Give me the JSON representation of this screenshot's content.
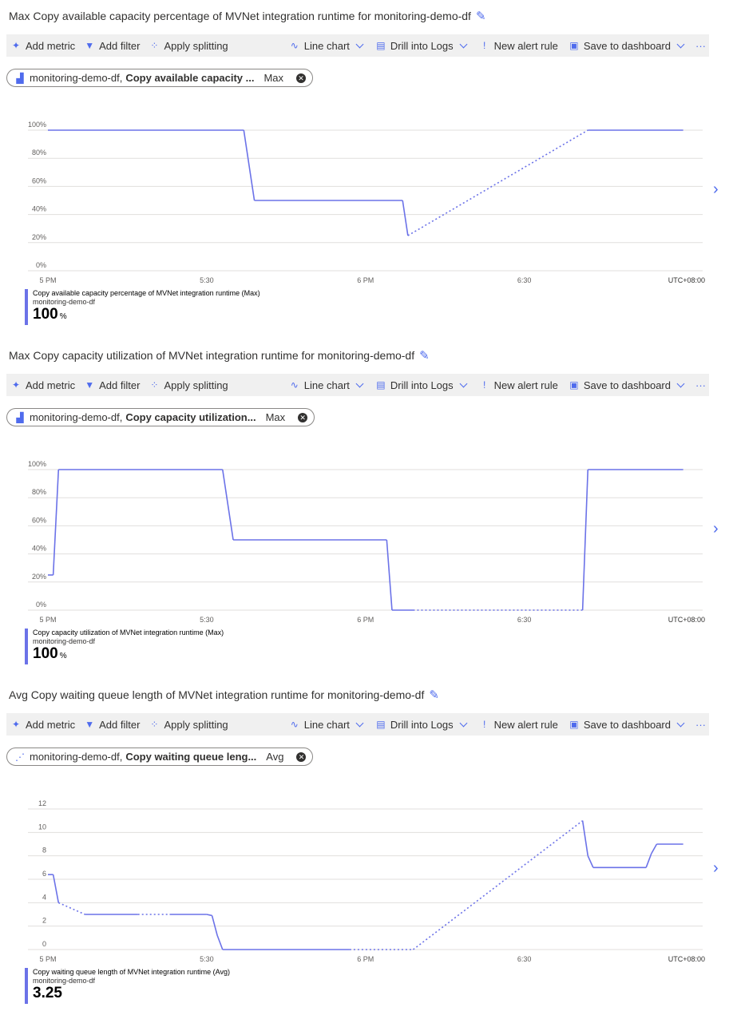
{
  "toolbar": {
    "add_metric": "Add metric",
    "add_filter": "Add filter",
    "apply_splitting": "Apply splitting",
    "line_chart": "Line chart",
    "drill_logs": "Drill into Logs",
    "new_alert": "New alert rule",
    "save_dashboard": "Save to dashboard",
    "more": "···"
  },
  "colors": {
    "accent": "#4f6bed",
    "series": "#6b72e8",
    "toolbar_bg": "#f0f0f0"
  },
  "x_ticks": [
    "5 PM",
    "5:30",
    "6 PM",
    "6:30"
  ],
  "timezone": "UTC+08:00",
  "panels": [
    {
      "title": "Max Copy available capacity percentage of MVNet integration runtime for monitoring-demo-df",
      "chip": {
        "resource": "monitoring-demo-df,",
        "metric": "Copy available capacity ...",
        "agg": "Max",
        "icon": "factory-icon"
      },
      "legend": {
        "name": "Copy available capacity percentage of MVNet integration runtime (Max)",
        "resource": "monitoring-demo-df",
        "value": "100",
        "unit": "%"
      },
      "chart_data": {
        "type": "line",
        "y_ticks": [
          "0%",
          "20%",
          "40%",
          "60%",
          "80%",
          "100%"
        ],
        "ylim": [
          0,
          100
        ],
        "xlim": [
          "17:00",
          "19:07"
        ],
        "points": [
          [
            "17:00",
            100,
            false
          ],
          [
            "17:37",
            100,
            false
          ],
          [
            "17:39",
            50,
            false
          ],
          [
            "18:07",
            50,
            false
          ],
          [
            "18:08",
            25,
            true
          ],
          [
            "18:42",
            100,
            false
          ],
          [
            "19:00",
            100,
            false
          ]
        ]
      }
    },
    {
      "title": "Max Copy capacity utilization of MVNet integration runtime for monitoring-demo-df",
      "chip": {
        "resource": "monitoring-demo-df,",
        "metric": "Copy capacity utilization...",
        "agg": "Max",
        "icon": "factory-icon"
      },
      "legend": {
        "name": "Copy capacity utilization of MVNet integration runtime (Max)",
        "resource": "monitoring-demo-df",
        "value": "100",
        "unit": "%"
      },
      "chart_data": {
        "type": "line",
        "y_ticks": [
          "0%",
          "20%",
          "40%",
          "60%",
          "80%",
          "100%"
        ],
        "ylim": [
          0,
          100
        ],
        "xlim": [
          "17:00",
          "19:07"
        ],
        "points": [
          [
            "17:00",
            25,
            false
          ],
          [
            "17:01",
            25,
            false
          ],
          [
            "17:02",
            100,
            false
          ],
          [
            "17:33",
            100,
            false
          ],
          [
            "17:35",
            50,
            false
          ],
          [
            "18:04",
            50,
            false
          ],
          [
            "18:05",
            0,
            false
          ],
          [
            "18:09",
            0,
            true
          ],
          [
            "18:41",
            0,
            false
          ],
          [
            "18:42",
            100,
            false
          ],
          [
            "19:00",
            100,
            false
          ]
        ]
      }
    },
    {
      "title": "Avg Copy waiting queue length of MVNet integration runtime for monitoring-demo-df",
      "chip": {
        "resource": "monitoring-demo-df,",
        "metric": "Copy waiting queue leng...",
        "agg": "Avg",
        "icon": "line-metric-icon"
      },
      "legend": {
        "name": "Copy waiting queue length of MVNet integration runtime (Avg)",
        "resource": "monitoring-demo-df",
        "value": "3.25",
        "unit": ""
      },
      "chart_data": {
        "type": "line",
        "y_ticks": [
          "0",
          "2",
          "4",
          "6",
          "8",
          "10",
          "12"
        ],
        "ylim": [
          0,
          12
        ],
        "xlim": [
          "17:00",
          "19:07"
        ],
        "points": [
          [
            "17:00",
            6.4,
            false
          ],
          [
            "17:01",
            6.4,
            false
          ],
          [
            "17:02",
            4,
            true
          ],
          [
            "17:07",
            3,
            false
          ],
          [
            "17:17",
            3,
            true
          ],
          [
            "17:23",
            3,
            false
          ],
          [
            "17:30",
            3,
            false
          ],
          [
            "17:31",
            2.9,
            false
          ],
          [
            "17:32",
            1.2,
            false
          ],
          [
            "17:33",
            0,
            false
          ],
          [
            "17:57",
            0,
            true
          ],
          [
            "18:09",
            0,
            true
          ],
          [
            "18:41",
            11,
            false
          ],
          [
            "18:42",
            8,
            false
          ],
          [
            "18:43",
            7,
            false
          ],
          [
            "18:53",
            7,
            false
          ],
          [
            "18:54",
            8.2,
            false
          ],
          [
            "18:55",
            9,
            false
          ],
          [
            "19:00",
            9,
            false
          ]
        ]
      }
    }
  ]
}
